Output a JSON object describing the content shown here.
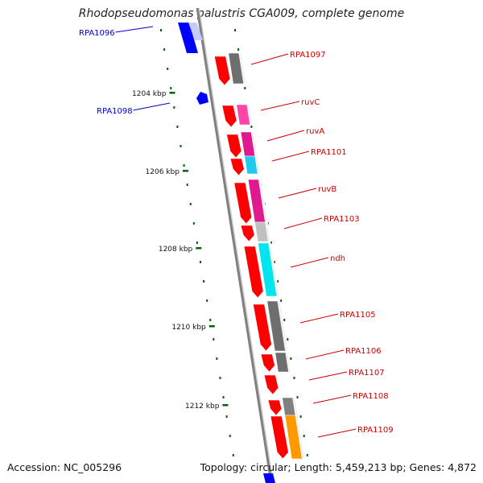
{
  "title": "Rhodopseudomonas palustris CGA009, complete genome",
  "footer": {
    "accession": "Accession: NC_005296",
    "summary": "Topology: circular; Length: 5,459,213 bp; Genes: 4,872"
  },
  "colors": {
    "forward_gene": "#0000ff",
    "reverse_gene": "#ff0000",
    "backbone": "#808080",
    "tick": "#006400",
    "label_forward": "#0000cc",
    "label_reverse": "#cc0000"
  },
  "ticks": [
    {
      "label": "1204 kbp"
    },
    {
      "label": "1206 kbp"
    },
    {
      "label": "1208 kbp"
    },
    {
      "label": "1210 kbp"
    },
    {
      "label": "1212 kbp"
    }
  ],
  "genes": [
    {
      "label": "RPA1096",
      "strand": "+"
    },
    {
      "label": "RPA1097",
      "strand": "-"
    },
    {
      "label": "RPA1098",
      "strand": "+"
    },
    {
      "label": "ruvC",
      "strand": "-"
    },
    {
      "label": "ruvA",
      "strand": "-"
    },
    {
      "label": "RPA1101",
      "strand": "-"
    },
    {
      "label": "ruvB",
      "strand": "-"
    },
    {
      "label": "RPA1103",
      "strand": "-"
    },
    {
      "label": "ndh",
      "strand": "-"
    },
    {
      "label": "RPA1105",
      "strand": "-"
    },
    {
      "label": "RPA1106",
      "strand": "-"
    },
    {
      "label": "RPA1107",
      "strand": "-"
    },
    {
      "label": "RPA1108",
      "strand": "-"
    },
    {
      "label": "RPA1109",
      "strand": "-"
    }
  ]
}
